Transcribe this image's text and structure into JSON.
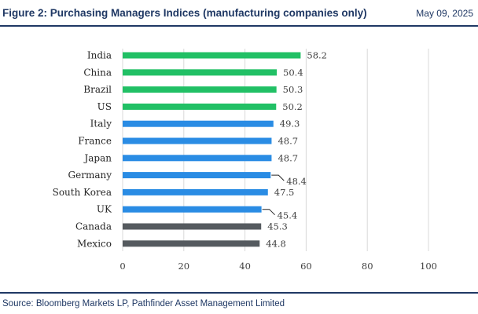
{
  "header": {
    "title": "Figure 2: Purchasing Managers Indices (manufacturing companies only)",
    "date": "May 09, 2025"
  },
  "footer": {
    "source": "Source: Bloomberg Markets LP, Pathfinder Asset Management Limited"
  },
  "chart_data": {
    "type": "bar",
    "orientation": "horizontal",
    "categories": [
      "India",
      "China",
      "Brazil",
      "US",
      "Italy",
      "France",
      "Japan",
      "Germany",
      "South Korea",
      "UK",
      "Canada",
      "Mexico"
    ],
    "values": [
      58.2,
      50.4,
      50.3,
      50.2,
      49.3,
      48.7,
      48.7,
      48.4,
      47.5,
      45.4,
      45.3,
      44.8
    ],
    "value_labels": [
      "58.2",
      "50.4",
      "50.3",
      "50.2",
      "49.3",
      "48.7",
      "48.7",
      "48.4",
      "47.5",
      "45.4",
      "45.3",
      "44.8"
    ],
    "bar_colors": [
      "#21c065",
      "#21c065",
      "#21c065",
      "#21c065",
      "#2a8ce4",
      "#2a8ce4",
      "#2a8ce4",
      "#2a8ce4",
      "#2a8ce4",
      "#2a8ce4",
      "#555a5f",
      "#555a5f"
    ],
    "x_ticks": [
      0,
      20,
      40,
      60,
      80,
      100
    ],
    "x_tick_labels": [
      "0",
      "20",
      "40",
      "60",
      "80",
      "100"
    ],
    "xlim": [
      0,
      100
    ],
    "grid": "vertical",
    "legend": "none",
    "label_leader_lines": [
      "Germany",
      "UK"
    ]
  }
}
